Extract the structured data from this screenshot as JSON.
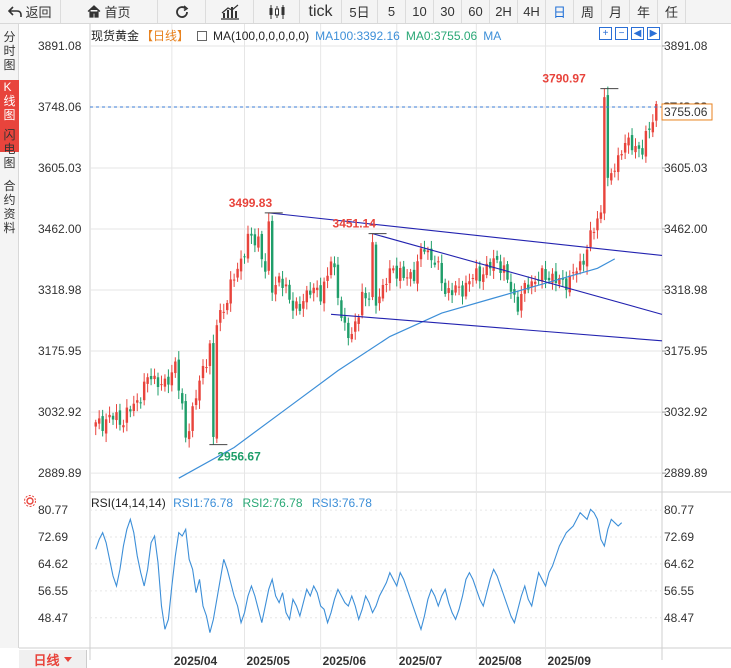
{
  "toolbar": {
    "back_label": "返回",
    "home_label": "首页",
    "tick_label": "tick",
    "periods": [
      "5日",
      "5",
      "10",
      "30",
      "60",
      "2H",
      "4H",
      "日",
      "周",
      "月",
      "年",
      "任"
    ],
    "active_period": "日"
  },
  "sidetabs": [
    {
      "label": "分时图",
      "active": false
    },
    {
      "label": "K线图",
      "active": true
    },
    {
      "label": "闪电图",
      "active": false
    },
    {
      "label": "合约资料",
      "active": false
    }
  ],
  "legend": {
    "title": "现货黄金",
    "period": "【日线】",
    "ma_label": "MA(100,0,0,0,0,0)",
    "ma100": "MA100:3392.16",
    "ma0": "MA0:3755.06",
    "ma": "MA"
  },
  "controls": [
    "+",
    "−",
    "◀",
    "▶",
    "⤢"
  ],
  "colors": {
    "up": "#e8443c",
    "down": "#1f9e6a",
    "ma100": "#3d8fd8",
    "trendline": "#2323b0",
    "price_line": "#3a7bd5",
    "grid": "#e6e6e6"
  },
  "rsi_legend": {
    "name": "RSI(14,14,14)",
    "rsi1": "RSI1:76.78",
    "rsi2": "RSI2:76.78",
    "rsi3": "RSI3:76.78"
  },
  "bottom": {
    "period_tag": "日线"
  },
  "chart_data": {
    "type": "candlestick",
    "instrument": "现货黄金",
    "interval": "日线",
    "price_axis": {
      "ticks": [
        "3891.08",
        "3748.06",
        "3605.03",
        "3462.00",
        "3318.98",
        "3175.95",
        "3032.92",
        "2889.89"
      ],
      "ylim": [
        2855,
        3905
      ]
    },
    "x_axis": {
      "labels": [
        "2025/04",
        "2025/05",
        "2025/06",
        "2025/07",
        "2025/08",
        "2025/09"
      ],
      "month_start_index": [
        22,
        43,
        65,
        87,
        110,
        130
      ]
    },
    "current_price": 3755.06,
    "current_price_label": "3755.06",
    "last_price_tag": "3748.06",
    "annotations": [
      {
        "text": "3499.83",
        "index": 50,
        "value": 3499.83,
        "kind": "high"
      },
      {
        "text": "3451.14",
        "index": 80,
        "value": 3451.14,
        "kind": "high"
      },
      {
        "text": "3790.97",
        "index": 147,
        "value": 3790.97,
        "kind": "high"
      },
      {
        "text": "2956.67",
        "index": 34,
        "value": 2956.67,
        "kind": "low"
      }
    ],
    "trendlines": [
      {
        "from": [
          50,
          3499.83
        ],
        "to": [
          "end",
          3400
        ]
      },
      {
        "from": [
          80,
          3451.14
        ],
        "to": [
          "end",
          3262
        ]
      },
      {
        "from": [
          68,
          3262
        ],
        "to": [
          "end",
          3200
        ]
      }
    ],
    "ma100": [
      [
        24,
        2878
      ],
      [
        40,
        2950
      ],
      [
        55,
        3040
      ],
      [
        70,
        3130
      ],
      [
        85,
        3210
      ],
      [
        100,
        3265
      ],
      [
        115,
        3300
      ],
      [
        130,
        3335
      ],
      [
        145,
        3370
      ],
      [
        150,
        3392
      ]
    ],
    "anchors": [
      [
        0,
        3000
      ],
      [
        4,
        3020
      ],
      [
        8,
        3015
      ],
      [
        12,
        3060
      ],
      [
        16,
        3120
      ],
      [
        20,
        3090
      ],
      [
        23,
        3150
      ],
      [
        26,
        2975
      ],
      [
        30,
        3100
      ],
      [
        34,
        3222
      ],
      [
        38,
        3300
      ],
      [
        41,
        3370
      ],
      [
        44,
        3435
      ],
      [
        47,
        3440
      ],
      [
        50,
        3320
      ],
      [
        53,
        3345
      ],
      [
        56,
        3300
      ],
      [
        59,
        3270
      ],
      [
        62,
        3330
      ],
      [
        65,
        3300
      ],
      [
        68,
        3395
      ],
      [
        71,
        3260
      ],
      [
        74,
        3200
      ],
      [
        77,
        3310
      ],
      [
        80,
        3290
      ],
      [
        83,
        3320
      ],
      [
        86,
        3375
      ],
      [
        89,
        3345
      ],
      [
        92,
        3360
      ],
      [
        95,
        3420
      ],
      [
        98,
        3385
      ],
      [
        101,
        3320
      ],
      [
        104,
        3315
      ],
      [
        107,
        3330
      ],
      [
        110,
        3355
      ],
      [
        113,
        3365
      ],
      [
        116,
        3395
      ],
      [
        119,
        3340
      ],
      [
        122,
        3285
      ],
      [
        125,
        3335
      ],
      [
        128,
        3345
      ],
      [
        131,
        3355
      ],
      [
        134,
        3335
      ],
      [
        137,
        3345
      ],
      [
        140,
        3375
      ],
      [
        143,
        3440
      ],
      [
        146,
        3505
      ],
      [
        149,
        3590
      ],
      [
        152,
        3650
      ],
      [
        155,
        3665
      ],
      [
        158,
        3640
      ],
      [
        160,
        3705
      ],
      [
        162,
        3748
      ]
    ],
    "candle_count": 163,
    "rsi": {
      "name": "RSI(14,14,14)",
      "ticks": [
        "80.77",
        "72.69",
        "64.62",
        "56.55",
        "48.47"
      ],
      "ylim": [
        43,
        82
      ],
      "values": [
        69,
        72,
        74,
        71,
        66,
        61,
        58,
        63,
        70,
        75,
        78,
        74,
        67,
        62,
        58,
        63,
        71,
        73,
        65,
        52,
        45,
        48,
        58,
        67,
        74,
        73,
        75,
        66,
        63,
        56,
        60,
        52,
        49,
        44,
        48,
        54,
        60,
        66,
        63,
        59,
        55,
        52,
        47,
        50,
        55,
        58,
        55,
        51,
        47,
        52,
        57,
        60,
        55,
        53,
        56,
        50,
        48,
        54,
        52,
        49,
        53,
        57,
        55,
        58,
        56,
        52,
        51,
        47,
        50,
        54,
        57,
        55,
        53,
        52,
        55,
        52,
        48,
        51,
        55,
        53,
        50,
        52,
        55,
        57,
        59,
        62,
        60,
        58,
        62,
        60,
        57,
        54,
        51,
        48,
        45,
        49,
        54,
        57,
        55,
        52,
        55,
        57,
        53,
        50,
        48,
        51,
        55,
        60,
        62,
        60,
        57,
        54,
        52,
        56,
        60,
        63,
        61,
        58,
        55,
        52,
        49,
        47,
        51,
        55,
        58,
        54,
        52,
        57,
        62,
        60,
        58,
        62,
        64,
        67,
        70,
        72,
        74,
        75,
        76,
        78,
        80,
        79,
        78,
        81,
        80,
        78,
        72,
        70,
        75,
        78,
        77,
        76,
        77
      ]
    }
  }
}
